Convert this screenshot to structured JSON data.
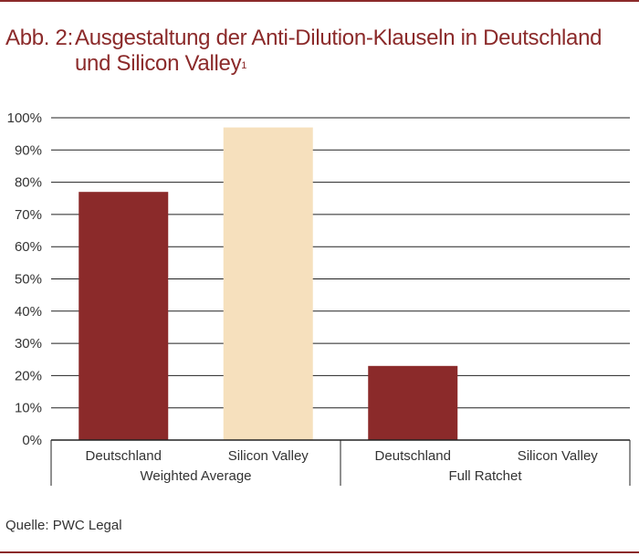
{
  "title": {
    "label": "Abb. 2:",
    "line1": "Ausgestaltung der Anti-Dilution-Klauseln in Deutschland",
    "line2": "und Silicon Valley",
    "footnote_mark": "1"
  },
  "source": "Quelle: PWC Legal",
  "colors": {
    "brand": "#8b2a2a",
    "deutschland": "#8b2a2a",
    "silicon_valley": "#f6e0bd"
  },
  "chart_data": {
    "type": "bar",
    "ylim": [
      0,
      100
    ],
    "yticks": [
      "0%",
      "10%",
      "20%",
      "30%",
      "40%",
      "50%",
      "60%",
      "70%",
      "80%",
      "90%",
      "100%"
    ],
    "groups": [
      {
        "name": "Weighted Average",
        "bars": [
          {
            "label": "Deutschland",
            "value": 77,
            "color": "#8b2a2a"
          },
          {
            "label": "Silicon Valley",
            "value": 97,
            "color": "#f6e0bd"
          }
        ]
      },
      {
        "name": "Full Ratchet",
        "bars": [
          {
            "label": "Deutschland",
            "value": 23,
            "color": "#8b2a2a"
          },
          {
            "label": "Silicon Valley",
            "value": 0,
            "color": "#f6e0bd"
          }
        ]
      }
    ],
    "grid": true
  }
}
